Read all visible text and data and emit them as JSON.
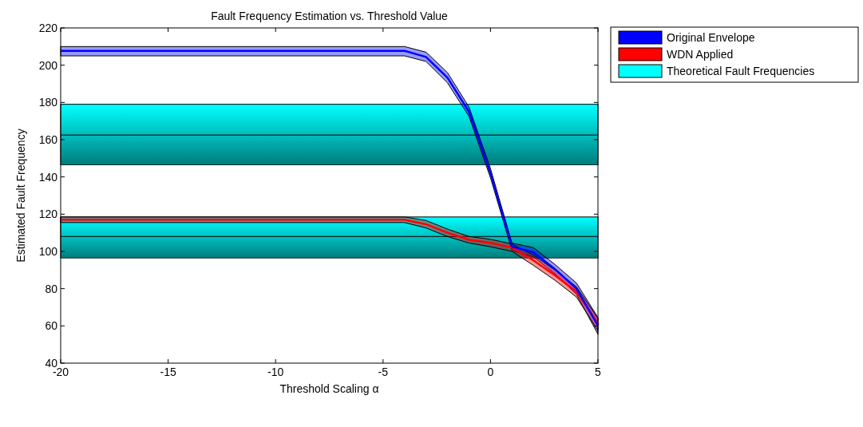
{
  "chart_data": {
    "type": "line",
    "title": "Fault Frequency Estimation vs. Threshold Value",
    "xlabel": "Threshold Scaling α",
    "ylabel": "Estimated Fault Frequency",
    "x": [
      -20,
      -4,
      -3,
      -2,
      -1,
      0,
      1,
      2,
      3,
      4,
      5
    ],
    "series": [
      {
        "name": "Original Envelope",
        "color": "#0000ff",
        "values": [
          207.7,
          207.7,
          204.4,
          193.3,
          175,
          142,
          102.6,
          99.5,
          90.5,
          80,
          60.2
        ],
        "lower": [
          205,
          205,
          202,
          190.5,
          172.5,
          139.5,
          100.5,
          97,
          88,
          77,
          55.5
        ],
        "upper": [
          210,
          210,
          207,
          196,
          177.5,
          144.5,
          104.5,
          102,
          93,
          83,
          64.5
        ]
      },
      {
        "name": "WDN Applied",
        "color": "#ff0000",
        "values": [
          117,
          117,
          114.6,
          110,
          106.2,
          104.6,
          102.1,
          95.2,
          87.1,
          78.4,
          61.5
        ],
        "lower": [
          115.5,
          115.5,
          112.6,
          108,
          104.5,
          102.5,
          100,
          92.5,
          84.5,
          75.5,
          57.5
        ],
        "upper": [
          118.5,
          118.5,
          116.6,
          112,
          108,
          106.5,
          104,
          98,
          90,
          81,
          64
        ]
      }
    ],
    "bands": [
      {
        "axis": "y",
        "from": 146.5,
        "to": 179,
        "label": "Theoretical Fault Frequencies",
        "color": "#00ffff"
      },
      {
        "axis": "y",
        "from": 96.5,
        "to": 118.5,
        "color": "#00ffff"
      }
    ],
    "ref_lines": [
      {
        "axis": "y",
        "value": 162.5,
        "color": "#000000"
      },
      {
        "axis": "y",
        "value": 108,
        "color": "#000000"
      }
    ],
    "xlim": [
      -20,
      5
    ],
    "xticks": [
      -20,
      -15,
      -10,
      -5,
      0,
      5
    ],
    "ylim": [
      40,
      220
    ],
    "yticks": [
      40,
      60,
      80,
      100,
      120,
      140,
      160,
      180,
      200,
      220
    ],
    "legend": "top right"
  }
}
